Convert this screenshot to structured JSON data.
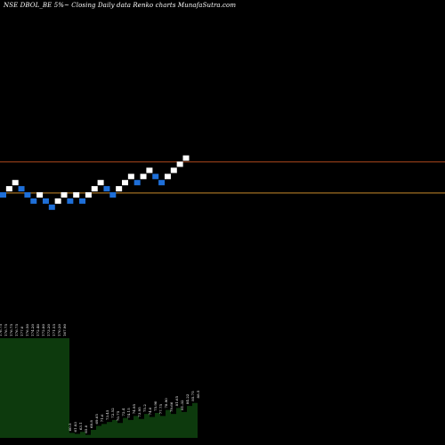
{
  "header": {
    "title": "NSE DBOL_BE 5%~  Closing Daily data Renko  charts MunafaSutra.com"
  },
  "chart_data": {
    "type": "renko",
    "title": "NSE DBOL_BE 5%~  Closing Daily data Renko  charts MunafaSutra.com",
    "colors": {
      "up_brick": "#ffffff",
      "down_brick": "#1e6fd8",
      "line_upper": "#b24a1e",
      "line_lower": "#c98a2a",
      "volume_fill": "#0d3a0d",
      "label": "#ffffff"
    },
    "bricks": [
      {
        "dir": "down",
        "level": 0
      },
      {
        "dir": "up",
        "level": 1
      },
      {
        "dir": "up",
        "level": 2
      },
      {
        "dir": "down",
        "level": 1
      },
      {
        "dir": "down",
        "level": 0
      },
      {
        "dir": "down",
        "level": -1
      },
      {
        "dir": "up",
        "level": 0
      },
      {
        "dir": "down",
        "level": -1
      },
      {
        "dir": "down",
        "level": -2
      },
      {
        "dir": "up",
        "level": -1
      },
      {
        "dir": "up",
        "level": 0
      },
      {
        "dir": "down",
        "level": -1
      },
      {
        "dir": "up",
        "level": 0
      },
      {
        "dir": "down",
        "level": -1
      },
      {
        "dir": "up",
        "level": 0
      },
      {
        "dir": "up",
        "level": 1
      },
      {
        "dir": "up",
        "level": 2
      },
      {
        "dir": "down",
        "level": 1
      },
      {
        "dir": "down",
        "level": 0
      },
      {
        "dir": "up",
        "level": 1
      },
      {
        "dir": "up",
        "level": 2
      },
      {
        "dir": "up",
        "level": 3
      },
      {
        "dir": "down",
        "level": 2
      },
      {
        "dir": "up",
        "level": 3
      },
      {
        "dir": "up",
        "level": 4
      },
      {
        "dir": "down",
        "level": 3
      },
      {
        "dir": "down",
        "level": 2
      },
      {
        "dir": "up",
        "level": 3
      },
      {
        "dir": "up",
        "level": 4
      },
      {
        "dir": "up",
        "level": 5
      },
      {
        "dir": "up",
        "level": 6
      }
    ],
    "hlines": [
      {
        "name": "upper",
        "level": 5.2
      },
      {
        "name": "lower",
        "level": 0.3
      }
    ],
    "volume": [
      {
        "v": 100,
        "label": "176.75"
      },
      {
        "v": 100,
        "label": "176.75"
      },
      {
        "v": 100,
        "label": "176.75"
      },
      {
        "v": 100,
        "label": "176.75"
      },
      {
        "v": 100,
        "label": "177.0"
      },
      {
        "v": 100,
        "label": "176.50"
      },
      {
        "v": 100,
        "label": "174.20"
      },
      {
        "v": 100,
        "label": "172.40"
      },
      {
        "v": 100,
        "label": "172.80"
      },
      {
        "v": 100,
        "label": "173.20"
      },
      {
        "v": 100,
        "label": "171.55"
      },
      {
        "v": 100,
        "label": "170.20"
      },
      {
        "v": 100,
        "label": "167.90"
      },
      {
        "v": 5,
        "label": "60.5"
      },
      {
        "v": 4,
        "label": "61.83"
      },
      {
        "v": 6,
        "label": "63.1"
      },
      {
        "v": 3,
        "label": "65.0"
      },
      {
        "v": 8,
        "label": "68.8"
      },
      {
        "v": 12,
        "label": "69.65"
      },
      {
        "v": 14,
        "label": "71.6"
      },
      {
        "v": 16,
        "label": "73.45"
      },
      {
        "v": 18,
        "label": "72.52"
      },
      {
        "v": 15,
        "label": "70.75"
      },
      {
        "v": 20,
        "label": "72.4"
      },
      {
        "v": 18,
        "label": "74.15"
      },
      {
        "v": 22,
        "label": "74.95"
      },
      {
        "v": 19,
        "label": "73.95"
      },
      {
        "v": 24,
        "label": "75.2"
      },
      {
        "v": 21,
        "label": "74.0"
      },
      {
        "v": 25,
        "label": "75.90"
      },
      {
        "v": 22,
        "label": "77.75"
      },
      {
        "v": 28,
        "label": "78.90"
      },
      {
        "v": 24,
        "label": "79.66"
      },
      {
        "v": 30,
        "label": "81.65"
      },
      {
        "v": 26,
        "label": "81.32"
      },
      {
        "v": 32,
        "label": "84.22"
      },
      {
        "v": 35,
        "label": "85.75"
      },
      {
        "v": 38,
        "label": "88.5"
      }
    ]
  }
}
